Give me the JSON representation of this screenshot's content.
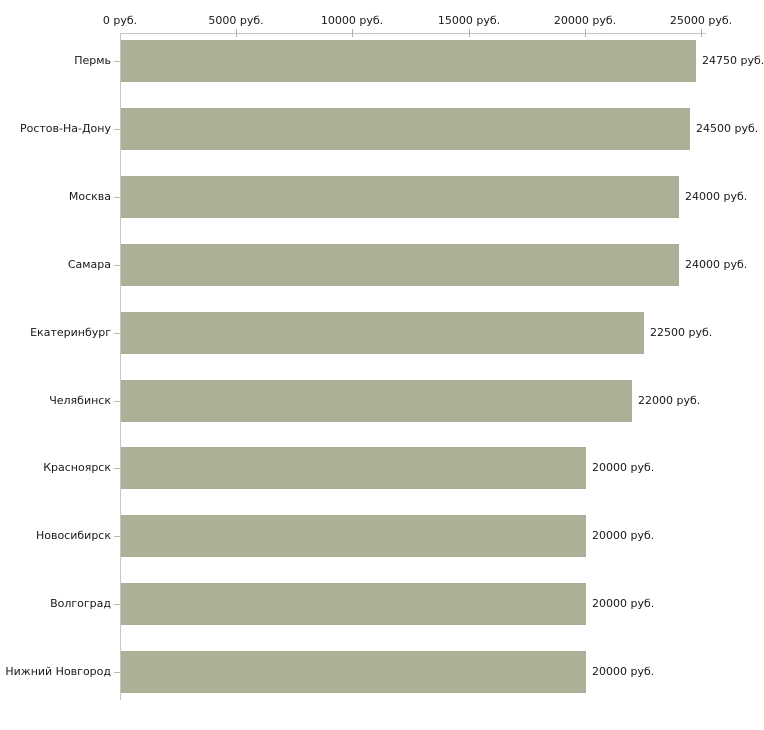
{
  "chart_data": {
    "type": "bar",
    "orientation": "horizontal",
    "title": "",
    "xlabel": "",
    "ylabel": "",
    "unit": "руб.",
    "categories": [
      "Пермь",
      "Ростов-На-Дону",
      "Москва",
      "Самара",
      "Екатеринбург",
      "Челябинск",
      "Красноярск",
      "Новосибирск",
      "Волгоград",
      "Нижний Новгород"
    ],
    "values": [
      24750,
      24500,
      24000,
      24000,
      22500,
      22000,
      20000,
      20000,
      20000,
      20000
    ],
    "value_labels": [
      "24750 руб.",
      "24500 руб.",
      "24000 руб.",
      "24000 руб.",
      "22500 руб.",
      "22000 руб.",
      "20000 руб.",
      "20000 руб.",
      "20000 руб.",
      "20000 руб."
    ],
    "x_axis": {
      "position": "top",
      "ticks": [
        0,
        5000,
        10000,
        15000,
        20000,
        25000
      ],
      "tick_labels": [
        "0 руб.",
        "5000 руб.",
        "10000 руб.",
        "15000 руб.",
        "20000 руб.",
        "25000 руб."
      ]
    },
    "xlim": [
      0,
      25000
    ],
    "grid": false,
    "legend": false,
    "colors": {
      "bar": "#aab197",
      "axis_line": "#c6c6c6",
      "axis_tick": "#b3b396",
      "category_tick": "#bdbdad",
      "text": "#1a1a1a",
      "background": "#ffffff"
    }
  }
}
